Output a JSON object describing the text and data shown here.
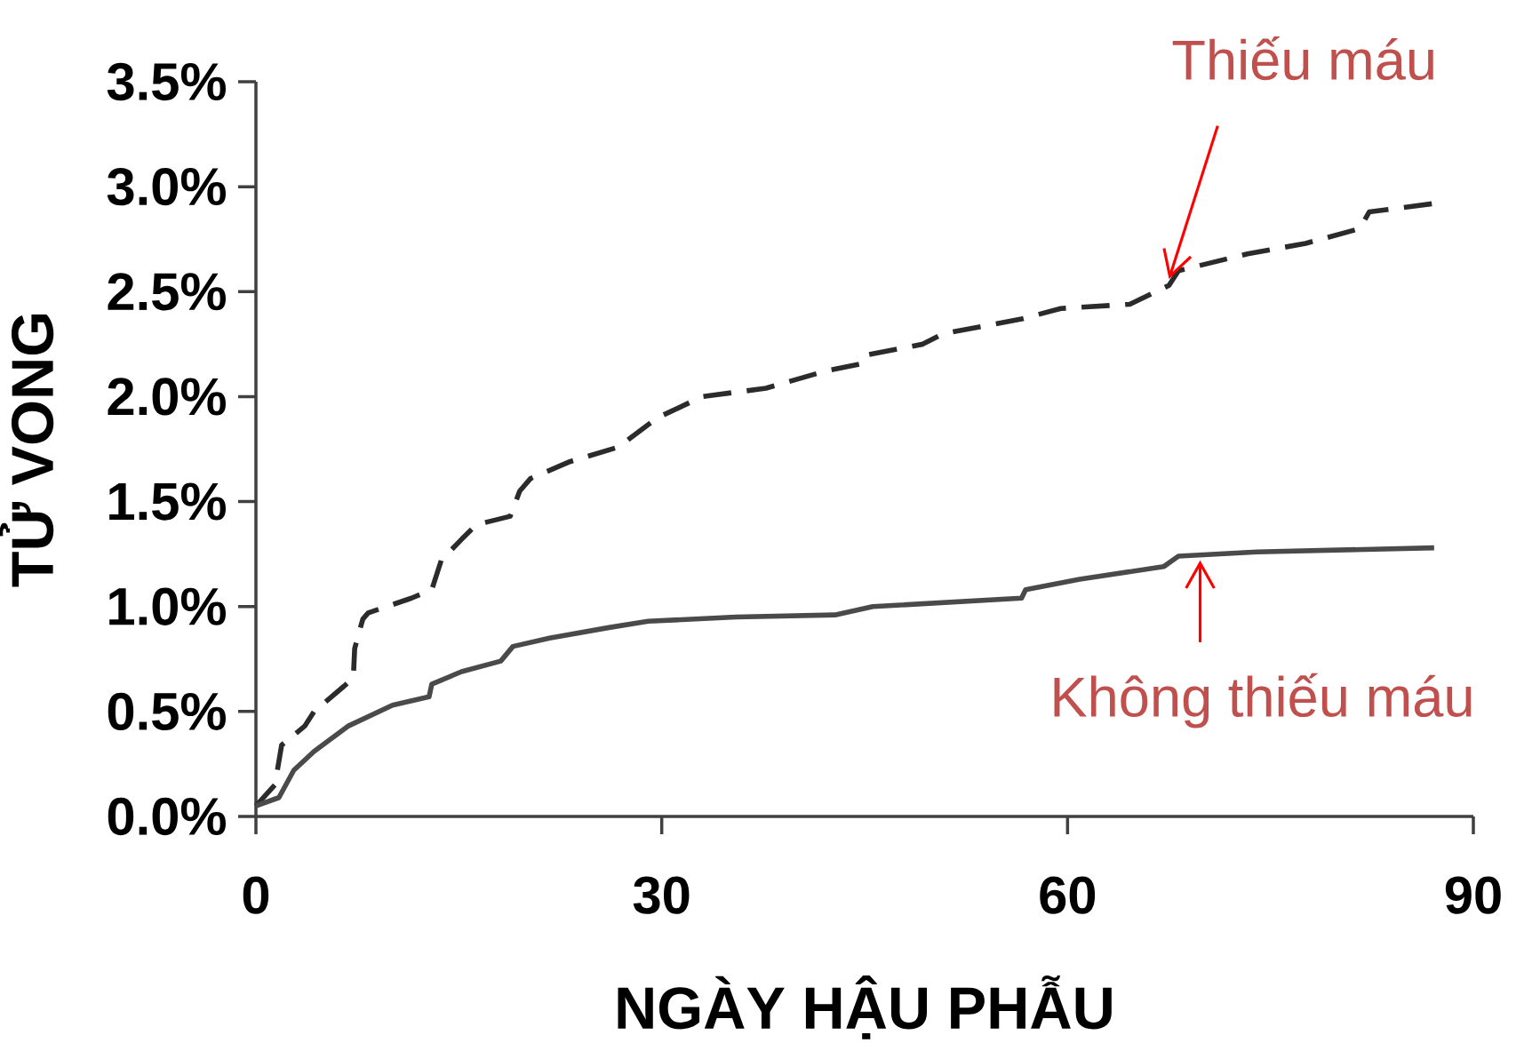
{
  "chart_data": {
    "type": "line",
    "xlabel": "NGÀY HẬU PHẪU",
    "ylabel": "TỬ VONG",
    "xlim": [
      0,
      90
    ],
    "ylim": [
      0,
      3.5
    ],
    "xticks": [
      0,
      30,
      60,
      90
    ],
    "yticks": [
      {
        "value": 0,
        "label": "0.0%"
      },
      {
        "value": 0.5,
        "label": "0.5%"
      },
      {
        "value": 1,
        "label": "1.0%"
      },
      {
        "value": 1.5,
        "label": "1.5%"
      },
      {
        "value": 2,
        "label": "2.0%"
      },
      {
        "value": 2.5,
        "label": "2.5%"
      },
      {
        "value": 3,
        "label": "3.0%"
      },
      {
        "value": 3.5,
        "label": "3.5%"
      }
    ],
    "series": [
      {
        "color": "#2b2b2b",
        "line_style": "dashed",
        "x": [
          0,
          1.4,
          1.9,
          3.6,
          4.3,
          6.5,
          7.2,
          7.3,
          7.9,
          8.3,
          11.5,
          13,
          13.7,
          15.2,
          16.3,
          18.8,
          19.5,
          20.3,
          23.2,
          26.8,
          29.7,
          33,
          37.7,
          42,
          45,
          45.3,
          49.3,
          50.8,
          56.6,
          59.5,
          64.6,
          67.5,
          68.2,
          73.3,
          77.6,
          81.6,
          82.3,
          87.1
        ],
        "values": [
          0.05,
          0.15,
          0.34,
          0.43,
          0.5,
          0.62,
          0.66,
          0.8,
          0.94,
          0.97,
          1.04,
          1.08,
          1.22,
          1.32,
          1.39,
          1.43,
          1.55,
          1.61,
          1.69,
          1.76,
          1.9,
          2.0,
          2.04,
          2.12,
          2.16,
          2.2,
          2.25,
          2.3,
          2.37,
          2.42,
          2.44,
          2.53,
          2.6,
          2.68,
          2.73,
          2.8,
          2.88,
          2.92
        ]
      },
      {
        "color": "#4a4a4a",
        "line_style": "solid",
        "x": [
          0,
          1.7,
          2.8,
          4.3,
          6.8,
          10.1,
          12.8,
          13,
          15.2,
          18.1,
          19,
          21.7,
          26.1,
          29,
          35.5,
          42.8,
          45.6,
          56.6,
          56.9,
          60.9,
          67.1,
          68.2,
          74,
          87.1
        ],
        "values": [
          0.05,
          0.09,
          0.22,
          0.31,
          0.43,
          0.53,
          0.57,
          0.63,
          0.69,
          0.74,
          0.81,
          0.85,
          0.9,
          0.93,
          0.95,
          0.96,
          1.0,
          1.04,
          1.08,
          1.13,
          1.19,
          1.24,
          1.26,
          1.28
        ]
      }
    ],
    "annotations": [
      {
        "text": "Thiếu máu",
        "x": 67.5,
        "y": 2.56
      },
      {
        "text": "Không thiếu máu",
        "x": 69.8,
        "y": 1.22
      }
    ]
  }
}
